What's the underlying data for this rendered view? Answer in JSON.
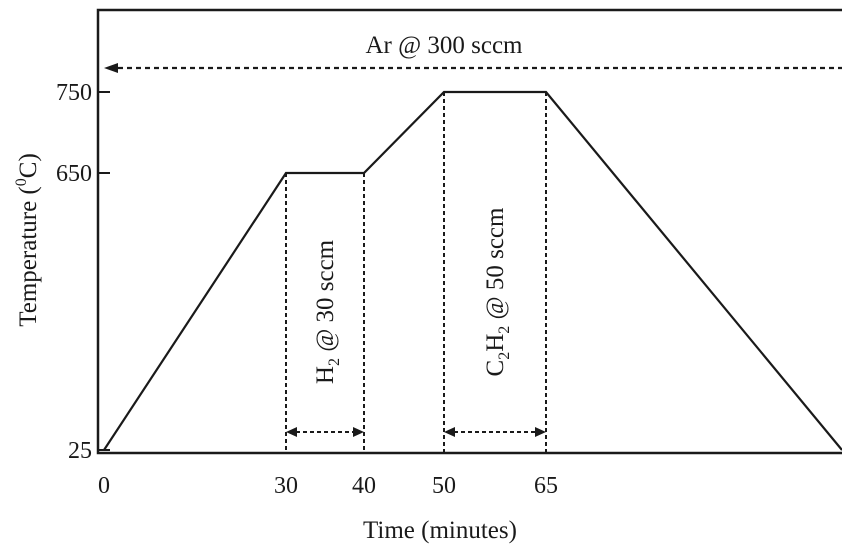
{
  "chart_data": {
    "type": "line",
    "title": "",
    "xlabel": "Time (minutes)",
    "ylabel_main": "Temperature (",
    "ylabel_sup": "0",
    "ylabel_end": "C)",
    "x_ticks": [
      {
        "value": 0,
        "label": "0"
      },
      {
        "value": 30,
        "label": "30"
      },
      {
        "value": 40,
        "label": "40"
      },
      {
        "value": 50,
        "label": "50"
      },
      {
        "value": 65,
        "label": "65"
      }
    ],
    "y_ticks": [
      {
        "value": 25,
        "label": "25"
      },
      {
        "value": 650,
        "label": "650"
      },
      {
        "value": 750,
        "label": "750"
      }
    ],
    "series": [
      {
        "points": [
          {
            "x": 0,
            "y": 25
          },
          {
            "x": 30,
            "y": 650
          },
          {
            "x": 40,
            "y": 650
          },
          {
            "x": 50,
            "y": 750
          },
          {
            "x": 65,
            "y": 750
          },
          {
            "x": 110,
            "y": 25
          }
        ]
      }
    ],
    "gas_windows": [
      {
        "id": "h2",
        "x_start": 30,
        "x_end": 40,
        "gas": "H",
        "sub": "2",
        "rate": " @ 30 sccm"
      },
      {
        "id": "c2h2",
        "x_start": 50,
        "x_end": 65,
        "gas": "C",
        "sub": "2",
        "gas2": "H",
        "sub2": "2",
        "rate": " @ 50 sccm"
      }
    ],
    "argon": {
      "label": "Ar @ 300 sccm",
      "level": 765
    },
    "grid": false,
    "legend": "none"
  }
}
